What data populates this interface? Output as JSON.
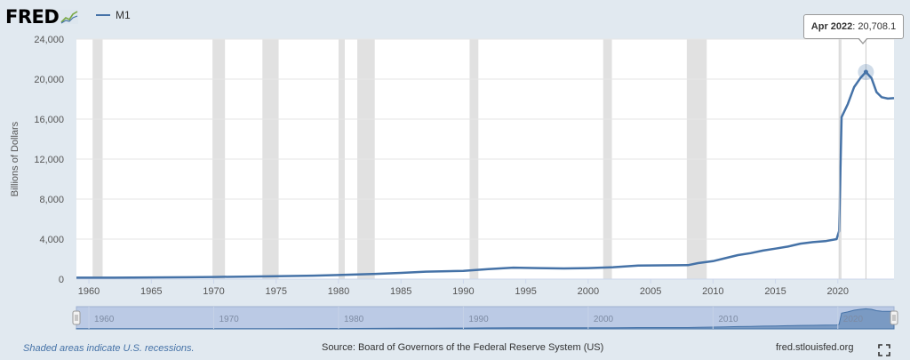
{
  "logo": {
    "text": "FRED",
    "icon": "fred-chart-icon"
  },
  "chart_data": {
    "type": "line",
    "title": "",
    "xlabel": "",
    "ylabel": "Billions of Dollars",
    "xlim": [
      1959,
      2024.5
    ],
    "ylim": [
      0,
      24000
    ],
    "yticks": [
      0,
      4000,
      8000,
      12000,
      16000,
      20000,
      24000
    ],
    "ytick_labels": [
      "0",
      "4,000",
      "8,000",
      "12,000",
      "16,000",
      "20,000",
      "24,000"
    ],
    "xticks": [
      1960,
      1965,
      1970,
      1975,
      1980,
      1985,
      1990,
      1995,
      2000,
      2005,
      2010,
      2015,
      2020
    ],
    "legend_position": "top-left",
    "grid": "horizontal",
    "series": [
      {
        "name": "M1",
        "color": "#4572a7",
        "x": [
          1959.0,
          1962,
          1965,
          1968,
          1970,
          1973,
          1975,
          1978,
          1980,
          1983,
          1985,
          1987,
          1990,
          1992,
          1994,
          1996,
          1998,
          2000,
          2002,
          2004,
          2006,
          2008.0,
          2008.8,
          2010,
          2011,
          2012,
          2013,
          2014,
          2015,
          2016,
          2017,
          2018,
          2019,
          2019.9,
          2020.1,
          2020.3,
          2020.8,
          2021.3,
          2021.8,
          2022.25,
          2022.7,
          2023.1,
          2023.5,
          2024.0,
          2024.5
        ],
        "y": [
          140,
          145,
          165,
          190,
          215,
          260,
          290,
          350,
          410,
          520,
          620,
          750,
          820,
          1000,
          1150,
          1100,
          1070,
          1100,
          1190,
          1350,
          1380,
          1400,
          1600,
          1800,
          2100,
          2400,
          2600,
          2850,
          3050,
          3250,
          3550,
          3700,
          3800,
          4000,
          4800,
          16200,
          17500,
          19200,
          20100,
          20708.1,
          20100,
          18700,
          18200,
          18050,
          18100
        ]
      }
    ],
    "recessions": [
      [
        1960.3,
        1961.1
      ],
      [
        1969.9,
        1970.9
      ],
      [
        1973.9,
        1975.2
      ],
      [
        1980.0,
        1980.5
      ],
      [
        1981.5,
        1982.9
      ],
      [
        1990.5,
        1991.2
      ],
      [
        2001.2,
        2001.9
      ],
      [
        2007.9,
        2009.5
      ],
      [
        2020.1,
        2020.3
      ]
    ],
    "tooltip": {
      "date": "Apr 2022",
      "x": 2022.25,
      "value": "20,708.1"
    }
  },
  "navigator": {
    "xticks": [
      1960,
      1970,
      1980,
      1990,
      2000,
      2010,
      2020
    ]
  },
  "footer": {
    "recessions_note": "Shaded areas indicate U.S. recessions.",
    "source": "Source: Board of Governors of the Federal Reserve System (US)",
    "url": "fred.stlouisfed.org"
  }
}
